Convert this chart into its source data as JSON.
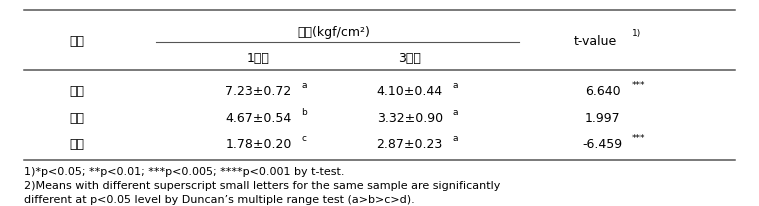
{
  "figsize": [
    7.59,
    2.07
  ],
  "dpi": 100,
  "col0_header": "품종",
  "hardness_header": "경도(kgf/cm²)",
  "col1_header": "1개월",
  "col2_header": "3개월",
  "tvalue_header": "t-value",
  "rows": [
    {
      "name": "옥영",
      "val1_main": "7.23±0.72",
      "val1_sup": "a",
      "val2_main": "4.10±0.44",
      "val2_sup": "a",
      "tval_main": "6.640",
      "tval_sup": "***"
    },
    {
      "name": "천매",
      "val1_main": "4.67±0.54",
      "val1_sup": "b",
      "val2_main": "3.32±0.90",
      "val2_sup": "a",
      "tval_main": "1.997",
      "tval_sup": ""
    },
    {
      "name": "낙고",
      "val1_main": "1.78±0.20",
      "val1_sup": "c",
      "val2_main": "2.87±0.23",
      "val2_sup": "a",
      "tval_main": "-6.459",
      "tval_sup": "***"
    }
  ],
  "footnote1": "1)*p<0.05; **p<0.01; ***p<0.005; ****p<0.001 by t-test.",
  "footnote2": "2)Means with different superscript small letters for the same sample are significantly",
  "footnote3": "different at p<0.05 level by Duncan’s multiple range test (a>b>c>d).",
  "text_color": "#000000",
  "line_color": "#555555",
  "bg_color": "#ffffff",
  "font_size": 9.0,
  "sup_font_size": 6.5,
  "footnote_font_size": 8.0
}
